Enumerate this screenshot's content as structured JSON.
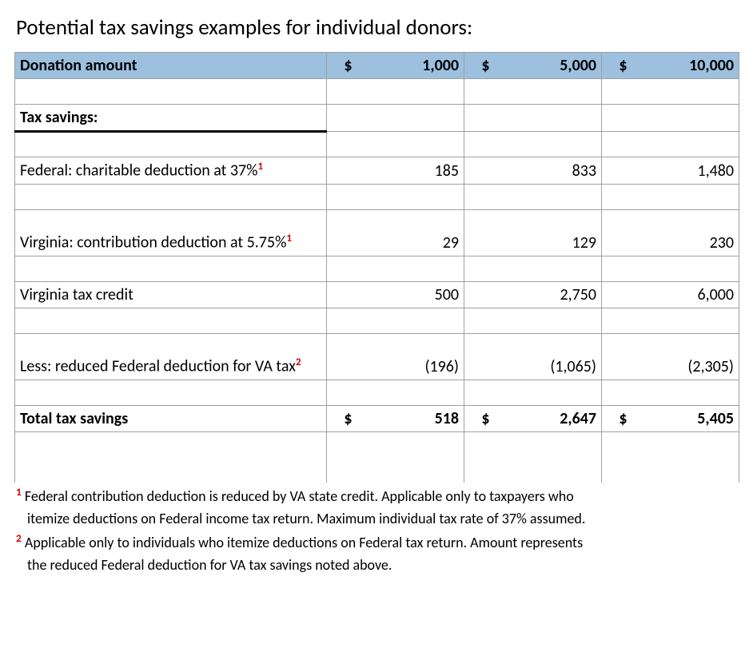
{
  "title": "Potential tax savings examples for individual donors:",
  "currency_symbol": "$",
  "header": {
    "label": "Donation amount",
    "amounts": [
      "1,000",
      "5,000",
      "10,000"
    ]
  },
  "section_label": "Tax savings:",
  "rows": [
    {
      "label_pre": "Federal: charitable deduction at 37%",
      "sup": "1",
      "values": [
        "185",
        "833",
        "1,480"
      ]
    },
    {
      "label_pre": "Virginia: contribution deduction at 5.75%",
      "sup": "1",
      "values": [
        "29",
        "129",
        "230"
      ]
    },
    {
      "label_pre": "Virginia tax credit",
      "sup": "",
      "values": [
        "500",
        "2,750",
        "6,000"
      ]
    },
    {
      "label_pre": "Less: reduced Federal deduction for VA tax",
      "sup": "2",
      "values": [
        "(196)",
        "(1,065)",
        "(2,305)"
      ]
    }
  ],
  "total": {
    "label": "Total tax savings",
    "values": [
      "518",
      "2,647",
      "5,405"
    ]
  },
  "footnotes": {
    "f1_sup": "1",
    "f1_line1": " Federal contribution deduction is reduced by VA state credit.  Applicable only to taxpayers who",
    "f1_line2": "itemize deductions on Federal income tax return.  Maximum individual tax rate of 37% assumed.",
    "f2_sup": "2",
    "f2_line1": " Applicable only to individuals who itemize deductions on Federal tax return.  Amount represents",
    "f2_line2": "the reduced Federal deduction for VA tax savings noted above."
  },
  "colors": {
    "header_bg": "#9cc0de",
    "border": "#a0a0a0",
    "sup": "#d00000"
  }
}
